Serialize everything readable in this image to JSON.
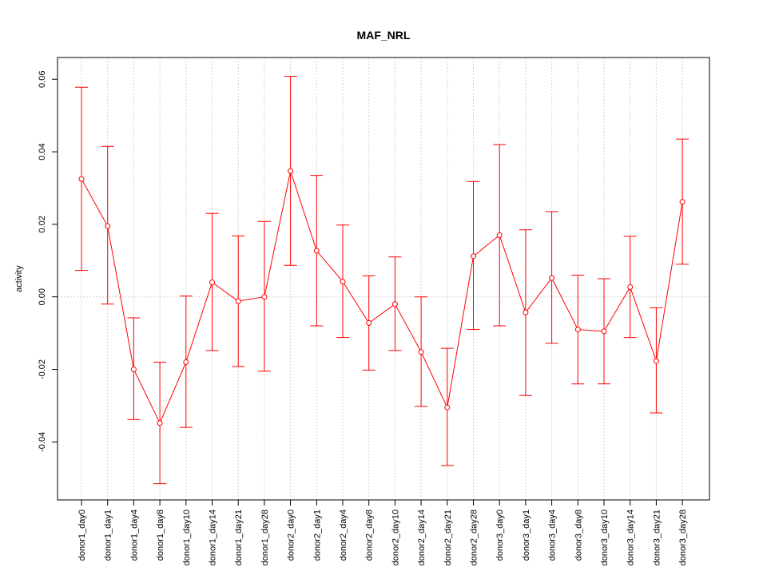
{
  "chart_data": {
    "type": "line",
    "title": "MAF_NRL",
    "xlabel": "",
    "ylabel": "activity",
    "ylim": [
      -0.056,
      0.066
    ],
    "yticks": [
      -0.04,
      -0.02,
      0.0,
      0.02,
      0.04,
      0.06
    ],
    "ytick_labels": [
      "-0.04",
      "-0.02",
      "0.00",
      "0.02",
      "0.04",
      "0.06"
    ],
    "grid": true,
    "color": "#ff0000",
    "categories": [
      "donor1_day0",
      "donor1_day1",
      "donor1_day4",
      "donor1_day8",
      "donor1_day10",
      "donor1_day14",
      "donor1_day21",
      "donor1_day28",
      "donor2_day0",
      "donor2_day1",
      "donor2_day4",
      "donor2_day8",
      "donor2_day10",
      "donor2_day14",
      "donor2_day21",
      "donor2_day28",
      "donor3_day0",
      "donor3_day1",
      "donor3_day4",
      "donor3_day8",
      "donor3_day10",
      "donor3_day14",
      "donor3_day21",
      "donor3_day28"
    ],
    "values": [
      0.0325,
      0.0195,
      -0.02,
      -0.0348,
      -0.018,
      0.004,
      -0.0012,
      0.0,
      0.0347,
      0.0127,
      0.0042,
      -0.0072,
      -0.002,
      -0.0152,
      -0.0305,
      0.0112,
      0.017,
      -0.0043,
      0.0052,
      -0.009,
      -0.0095,
      0.0027,
      -0.0177,
      0.0262
    ],
    "upper": [
      0.0578,
      0.0415,
      -0.0058,
      -0.018,
      0.0002,
      0.023,
      0.0168,
      0.0208,
      0.0608,
      0.0335,
      0.0198,
      0.0058,
      0.011,
      0.0,
      -0.0142,
      0.0318,
      0.042,
      0.0185,
      0.0235,
      0.006,
      0.005,
      0.0167,
      -0.003,
      0.0435
    ],
    "lower": [
      0.0073,
      -0.002,
      -0.0338,
      -0.0515,
      -0.036,
      -0.0148,
      -0.0192,
      -0.0205,
      0.0087,
      -0.008,
      -0.0112,
      -0.0202,
      -0.0148,
      -0.0302,
      -0.0465,
      -0.009,
      -0.008,
      -0.0272,
      -0.0128,
      -0.024,
      -0.024,
      -0.0112,
      -0.032,
      0.009
    ]
  }
}
